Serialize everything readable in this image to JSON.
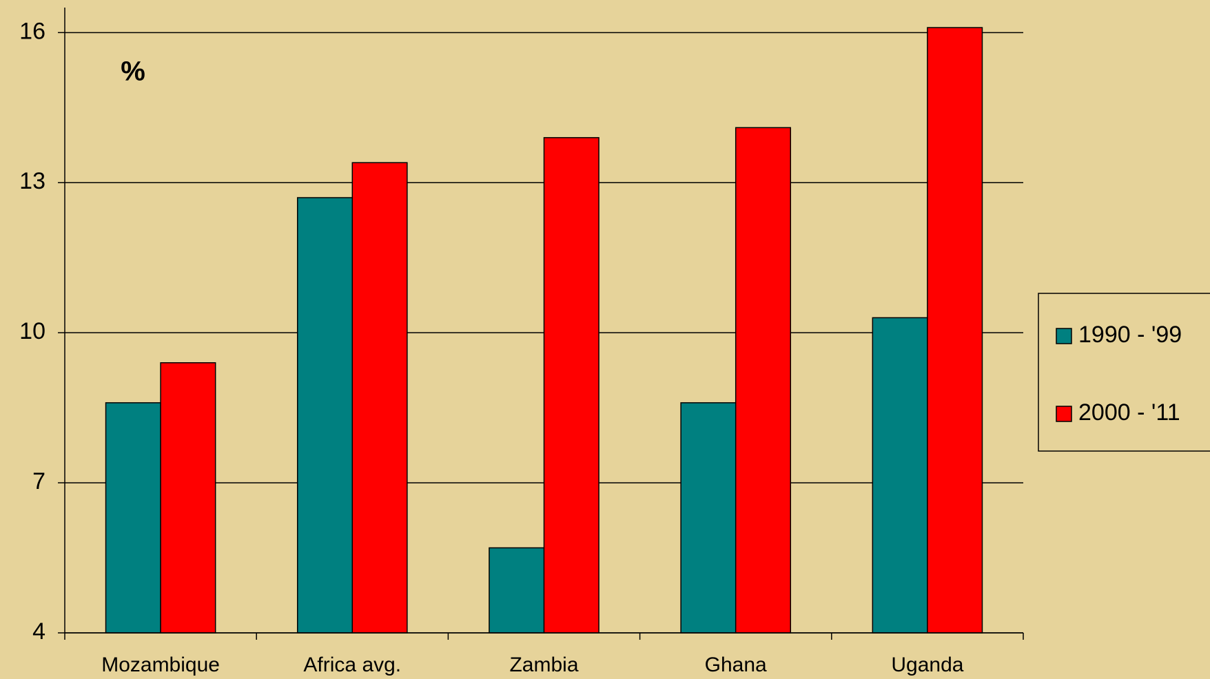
{
  "chart_data": {
    "type": "bar",
    "annotation": "%",
    "categories": [
      "Mozambique",
      "Africa avg.",
      "Zambia",
      "Ghana",
      "Uganda"
    ],
    "series": [
      {
        "name": "1990 - '99",
        "color": "#008080",
        "values": [
          8.6,
          12.7,
          5.7,
          8.6,
          10.3
        ]
      },
      {
        "name": "2000 - '11",
        "color": "#ff0000",
        "values": [
          9.4,
          13.4,
          13.9,
          14.1,
          16.1
        ]
      }
    ],
    "ylim": [
      4,
      16.5
    ],
    "yticks": [
      4,
      7,
      10,
      13,
      16
    ],
    "grid": true,
    "legend": "right"
  }
}
